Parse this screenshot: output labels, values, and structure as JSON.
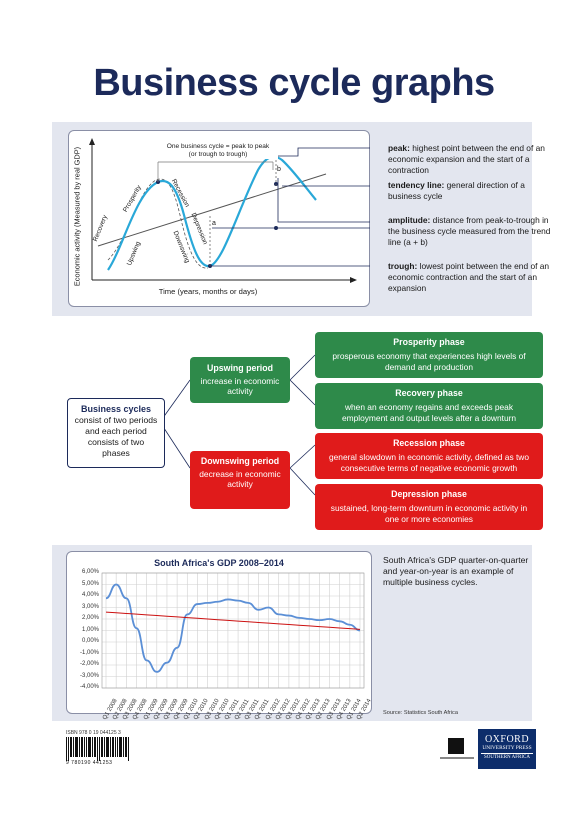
{
  "title": "Business cycle graphs",
  "cycle_graph": {
    "y_label": "Economic activity (Measured by real GDP)",
    "x_label": "Time (years, months or days)",
    "cycle_note": "One business cycle = peak to peak\n(or trough to trough)",
    "phase_labels": [
      "Recovery",
      "Upswing",
      "Prosperity",
      "Recession",
      "Downswing",
      "Depression"
    ],
    "mark_a": "a",
    "mark_b": "b"
  },
  "definitions": [
    {
      "term": "peak:",
      "text": " highest point between the end of an economic expansion and the start of a contraction"
    },
    {
      "term": "tendency line:",
      "text": " general direction of a business cycle"
    },
    {
      "term": "amplitude:",
      "text": " distance from peak-to-trough in the business cycle measured from the trend line (a + b)"
    },
    {
      "term": "trough:",
      "text": " lowest point between the end of an economic contraction and the start of an expansion"
    }
  ],
  "tree": {
    "root_title": "Business cycles",
    "root_text": "consist of two periods and each period consists of two phases",
    "upswing_title": "Upswing period",
    "upswing_text": "increase in economic activity",
    "downswing_title": "Downswing period",
    "downswing_text": "decrease in economic activity",
    "phases": [
      {
        "title": "Prosperity phase",
        "text": "prosperous economy that experiences high levels of demand and production",
        "color": "#2e8a4a"
      },
      {
        "title": "Recovery phase",
        "text": "when an economy regains and exceeds peak employment and output levels after a downturn",
        "color": "#2e8a4a"
      },
      {
        "title": "Recession phase",
        "text": "general slowdown in economic activity, defined as two consecutive terms of negative economic growth",
        "color": "#e01b1b"
      },
      {
        "title": "Depression phase",
        "text": "sustained, long-term downturn in economic activity in one or more economies",
        "color": "#e01b1b"
      }
    ]
  },
  "gdp_note": "South Africa's GDP quarter-on-quarter and year-on-year is an example of multiple business cycles.",
  "source": "Source: Statistics South Africa",
  "chart_data": {
    "type": "line",
    "title": "South Africa's GDP 2008–2014",
    "categories": [
      "Q1 2008",
      "Q2 2008",
      "Q3 2008",
      "Q4 2008",
      "Q1 2009",
      "Q2 2009",
      "Q3 2009",
      "Q4 2009",
      "Q1 2010",
      "Q2 2010",
      "Q3 2010",
      "Q4 2010",
      "Q1 2011",
      "Q2 2011",
      "Q3 2011",
      "Q4 2011",
      "Q1 2012",
      "Q2 2012",
      "Q3 2012",
      "Q4 2012",
      "Q1 2013",
      "Q2 2013",
      "Q3 2013",
      "Q4 2013",
      "Q1 2014",
      "Q2 2014"
    ],
    "series": [
      {
        "values": [
          3.8,
          5.0,
          3.8,
          1.2,
          -1.6,
          -2.6,
          -1.8,
          -0.5,
          2.4,
          3.3,
          3.4,
          3.5,
          3.7,
          3.6,
          3.4,
          2.8,
          3.0,
          2.4,
          2.3,
          2.1,
          2.0,
          1.9,
          2.0,
          1.8,
          1.5,
          1.0
        ],
        "color": "#5b8fd6"
      },
      {
        "values": [
          2.6,
          2.54,
          2.48,
          2.42,
          2.36,
          2.3,
          2.24,
          2.18,
          2.12,
          2.06,
          2.0,
          1.94,
          1.88,
          1.82,
          1.76,
          1.7,
          1.64,
          1.58,
          1.52,
          1.46,
          1.4,
          1.34,
          1.28,
          1.22,
          1.16,
          1.1
        ],
        "color": "#cc1111"
      }
    ],
    "y_ticks": [
      "6,00%",
      "5,00%",
      "4,00%",
      "3,00%",
      "2,00%",
      "1,00%",
      "0,00%",
      "-1,00%",
      "-2,00%",
      "-3,00%",
      "-4,00%"
    ],
    "ylim": [
      -4,
      6
    ]
  },
  "isbn": "ISBN 978 0 19 044125 3",
  "barcode_digits": "9 780190 441253",
  "logo": {
    "line1": "OXFORD",
    "line2": "UNIVERSITY PRESS",
    "line3": "SOUTHERN AFRICA"
  },
  "colors": {
    "navy": "#1c2a5a",
    "green": "#2e8a4a",
    "red": "#e01b1b",
    "panel": "#e3e6ef"
  }
}
